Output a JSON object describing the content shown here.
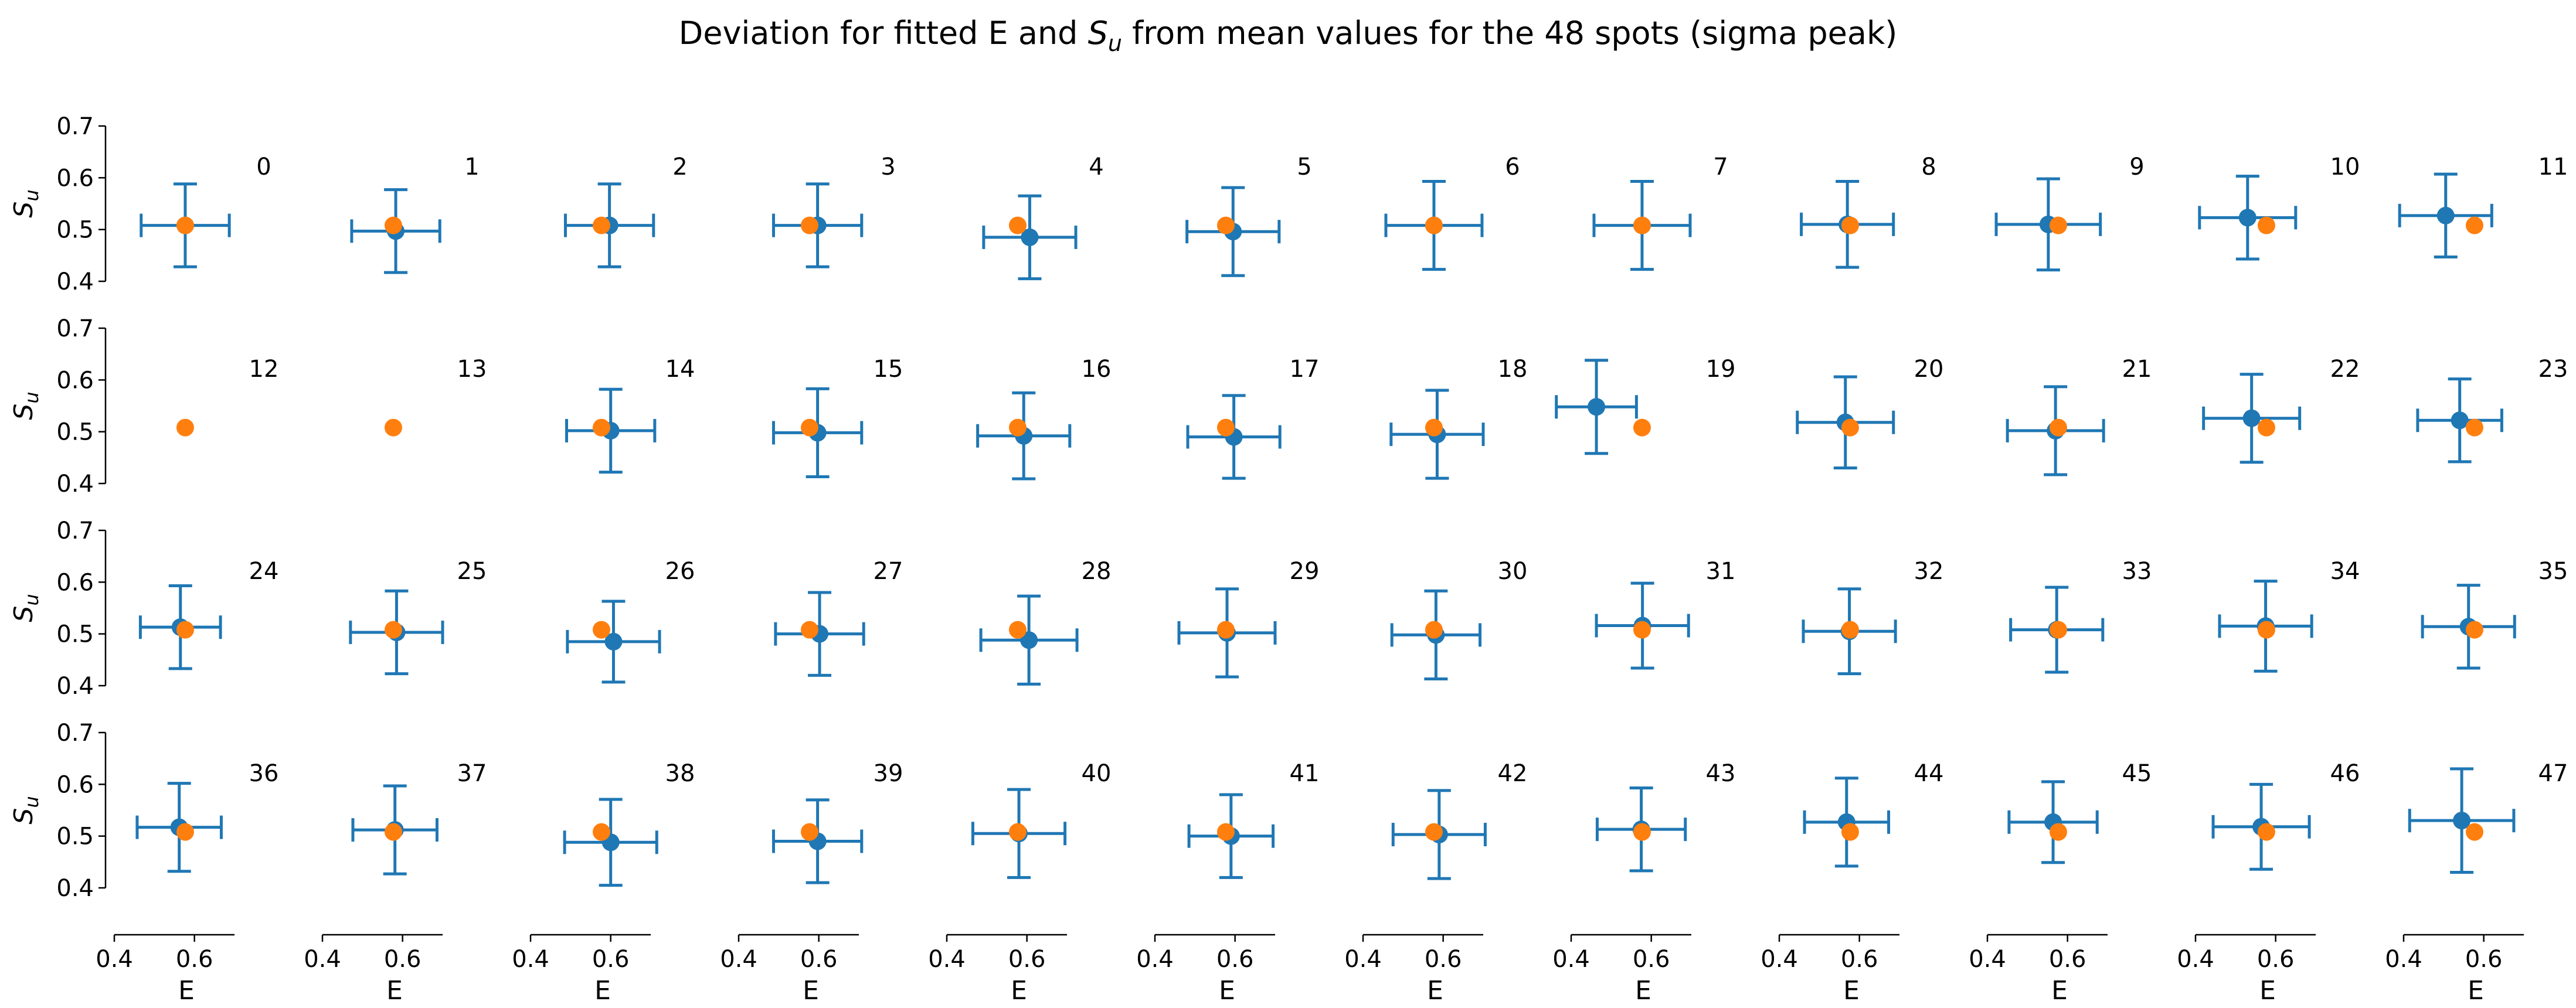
{
  "chart_data": {
    "type": "scatter",
    "title": "Deviation for fitted E and S_u from mean values for the 48 spots (sigma peak)",
    "title_parts": {
      "before": "Deviation for fitted E and ",
      "symbol": "S",
      "subscript": "u",
      "after": " from mean values for the 48 spots (sigma peak)"
    },
    "grid": false,
    "layout": {
      "rows": 4,
      "cols": 12
    },
    "xlabel": "E",
    "ylabel": "S",
    "ylabel_subscript": "u",
    "xlim": [
      0.4,
      0.7
    ],
    "ylim": [
      0.4,
      0.7
    ],
    "x_ticks": [
      "0.4",
      "0.6"
    ],
    "y_ticks": [
      "0.4",
      "0.5",
      "0.6",
      "0.7"
    ],
    "series": [
      {
        "color": "#1f77b4",
        "marker": "errorbar"
      },
      {
        "color": "#ff7f0e",
        "marker": "point"
      }
    ],
    "mean": {
      "E": 0.577,
      "S_u": 0.508
    },
    "spots": [
      {
        "id": 0,
        "E": 0.577,
        "S_u": 0.508,
        "E_err": 0.11,
        "S_err": 0.08
      },
      {
        "id": 1,
        "E": 0.583,
        "S_u": 0.497,
        "E_err": 0.11,
        "S_err": 0.08
      },
      {
        "id": 2,
        "E": 0.597,
        "S_u": 0.508,
        "E_err": 0.11,
        "S_err": 0.08
      },
      {
        "id": 3,
        "E": 0.597,
        "S_u": 0.508,
        "E_err": 0.11,
        "S_err": 0.08
      },
      {
        "id": 4,
        "E": 0.607,
        "S_u": 0.485,
        "E_err": 0.115,
        "S_err": 0.08
      },
      {
        "id": 5,
        "E": 0.595,
        "S_u": 0.496,
        "E_err": 0.115,
        "S_err": 0.085
      },
      {
        "id": 6,
        "E": 0.577,
        "S_u": 0.508,
        "E_err": 0.12,
        "S_err": 0.085
      },
      {
        "id": 7,
        "E": 0.577,
        "S_u": 0.508,
        "E_err": 0.12,
        "S_err": 0.085
      },
      {
        "id": 8,
        "E": 0.57,
        "S_u": 0.51,
        "E_err": 0.115,
        "S_err": 0.083
      },
      {
        "id": 9,
        "E": 0.552,
        "S_u": 0.51,
        "E_err": 0.13,
        "S_err": 0.088
      },
      {
        "id": 10,
        "E": 0.53,
        "S_u": 0.523,
        "E_err": 0.12,
        "S_err": 0.08
      },
      {
        "id": 11,
        "E": 0.505,
        "S_u": 0.527,
        "E_err": 0.115,
        "S_err": 0.08
      },
      {
        "id": 12,
        "E": null,
        "S_u": null,
        "E_err": null,
        "S_err": null
      },
      {
        "id": 13,
        "E": null,
        "S_u": null,
        "E_err": null,
        "S_err": null
      },
      {
        "id": 14,
        "E": 0.6,
        "S_u": 0.502,
        "E_err": 0.11,
        "S_err": 0.08
      },
      {
        "id": 15,
        "E": 0.597,
        "S_u": 0.498,
        "E_err": 0.11,
        "S_err": 0.085
      },
      {
        "id": 16,
        "E": 0.592,
        "S_u": 0.492,
        "E_err": 0.115,
        "S_err": 0.083
      },
      {
        "id": 17,
        "E": 0.597,
        "S_u": 0.49,
        "E_err": 0.115,
        "S_err": 0.08
      },
      {
        "id": 18,
        "E": 0.585,
        "S_u": 0.495,
        "E_err": 0.115,
        "S_err": 0.085
      },
      {
        "id": 19,
        "E": 0.463,
        "S_u": 0.548,
        "E_err": 0.1,
        "S_err": 0.09
      },
      {
        "id": 20,
        "E": 0.565,
        "S_u": 0.518,
        "E_err": 0.12,
        "S_err": 0.088
      },
      {
        "id": 21,
        "E": 0.57,
        "S_u": 0.502,
        "E_err": 0.12,
        "S_err": 0.085
      },
      {
        "id": 22,
        "E": 0.54,
        "S_u": 0.526,
        "E_err": 0.12,
        "S_err": 0.085
      },
      {
        "id": 23,
        "E": 0.54,
        "S_u": 0.522,
        "E_err": 0.105,
        "S_err": 0.08
      },
      {
        "id": 24,
        "E": 0.565,
        "S_u": 0.513,
        "E_err": 0.1,
        "S_err": 0.08
      },
      {
        "id": 25,
        "E": 0.585,
        "S_u": 0.503,
        "E_err": 0.115,
        "S_err": 0.08
      },
      {
        "id": 26,
        "E": 0.607,
        "S_u": 0.485,
        "E_err": 0.115,
        "S_err": 0.078
      },
      {
        "id": 27,
        "E": 0.602,
        "S_u": 0.5,
        "E_err": 0.11,
        "S_err": 0.08
      },
      {
        "id": 28,
        "E": 0.605,
        "S_u": 0.488,
        "E_err": 0.12,
        "S_err": 0.085
      },
      {
        "id": 29,
        "E": 0.58,
        "S_u": 0.502,
        "E_err": 0.12,
        "S_err": 0.085
      },
      {
        "id": 30,
        "E": 0.582,
        "S_u": 0.498,
        "E_err": 0.11,
        "S_err": 0.085
      },
      {
        "id": 31,
        "E": 0.578,
        "S_u": 0.516,
        "E_err": 0.115,
        "S_err": 0.082
      },
      {
        "id": 32,
        "E": 0.575,
        "S_u": 0.505,
        "E_err": 0.115,
        "S_err": 0.082
      },
      {
        "id": 33,
        "E": 0.573,
        "S_u": 0.508,
        "E_err": 0.115,
        "S_err": 0.082
      },
      {
        "id": 34,
        "E": 0.575,
        "S_u": 0.515,
        "E_err": 0.115,
        "S_err": 0.087
      },
      {
        "id": 35,
        "E": 0.562,
        "S_u": 0.514,
        "E_err": 0.115,
        "S_err": 0.08
      },
      {
        "id": 36,
        "E": 0.562,
        "S_u": 0.517,
        "E_err": 0.105,
        "S_err": 0.085
      },
      {
        "id": 37,
        "E": 0.581,
        "S_u": 0.512,
        "E_err": 0.105,
        "S_err": 0.085
      },
      {
        "id": 38,
        "E": 0.6,
        "S_u": 0.488,
        "E_err": 0.115,
        "S_err": 0.083
      },
      {
        "id": 39,
        "E": 0.597,
        "S_u": 0.49,
        "E_err": 0.11,
        "S_err": 0.08
      },
      {
        "id": 40,
        "E": 0.58,
        "S_u": 0.505,
        "E_err": 0.115,
        "S_err": 0.085
      },
      {
        "id": 41,
        "E": 0.59,
        "S_u": 0.5,
        "E_err": 0.105,
        "S_err": 0.08
      },
      {
        "id": 42,
        "E": 0.59,
        "S_u": 0.503,
        "E_err": 0.115,
        "S_err": 0.085
      },
      {
        "id": 43,
        "E": 0.575,
        "S_u": 0.513,
        "E_err": 0.11,
        "S_err": 0.08
      },
      {
        "id": 44,
        "E": 0.568,
        "S_u": 0.527,
        "E_err": 0.105,
        "S_err": 0.085
      },
      {
        "id": 45,
        "E": 0.564,
        "S_u": 0.527,
        "E_err": 0.11,
        "S_err": 0.078
      },
      {
        "id": 46,
        "E": 0.564,
        "S_u": 0.518,
        "E_err": 0.12,
        "S_err": 0.082
      },
      {
        "id": 47,
        "E": 0.545,
        "S_u": 0.53,
        "E_err": 0.13,
        "S_err": 0.1
      }
    ]
  }
}
